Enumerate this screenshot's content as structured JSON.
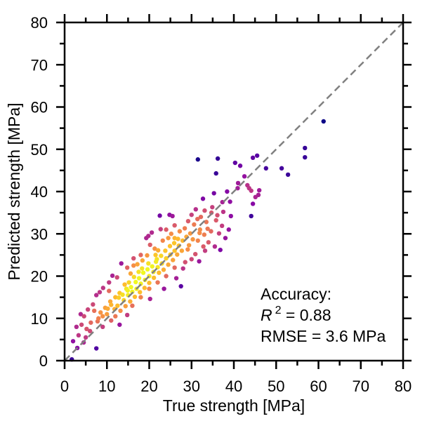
{
  "chart_data": {
    "type": "scatter",
    "xlabel": "True strength [MPa]",
    "ylabel": "Predicted strength [MPa]",
    "xlim": [
      0,
      80
    ],
    "ylim": [
      0,
      80
    ],
    "xticks": [
      "0",
      "10",
      "20",
      "30",
      "40",
      "50",
      "60",
      "70",
      "80"
    ],
    "yticks": [
      "0",
      "10",
      "20",
      "30",
      "40",
      "50",
      "60",
      "70",
      "80"
    ],
    "grid": false,
    "colormap": "plasma (point density)",
    "reference_line": {
      "label": "y = x",
      "color": "#808080",
      "style": "dashed"
    },
    "annotation": {
      "title": "Accuracy:",
      "r2_symbol": "R",
      "r2_sup": "2",
      "r2_value": " = 0.88",
      "rmse": "RMSE = 3.6 MPa"
    },
    "points": [
      [
        61.2,
        56.6
      ],
      [
        56.8,
        50.3
      ],
      [
        56.8,
        48.1
      ],
      [
        51.3,
        45.5
      ],
      [
        52.8,
        44.0
      ],
      [
        47.6,
        45.5
      ],
      [
        45.5,
        48.5
      ],
      [
        44.5,
        48.0
      ],
      [
        36.2,
        47.8
      ],
      [
        31.5,
        47.6
      ],
      [
        40.3,
        46.8
      ],
      [
        41.5,
        46.1
      ],
      [
        44.1,
        40.2
      ],
      [
        46.0,
        40.3
      ],
      [
        45.8,
        39.2
      ],
      [
        44.1,
        34.2
      ],
      [
        39.3,
        34.2
      ],
      [
        43.2,
        41.5
      ],
      [
        42.5,
        43.6
      ],
      [
        41.0,
        42.0
      ],
      [
        35.8,
        44.3
      ],
      [
        40.9,
        40.8
      ],
      [
        43.6,
        40.8
      ],
      [
        44.5,
        37.1
      ],
      [
        45.1,
        38.7
      ],
      [
        39.1,
        37.6
      ],
      [
        38.4,
        40.0
      ],
      [
        37.3,
        37.5
      ],
      [
        35.3,
        39.6
      ],
      [
        32.7,
        38.3
      ],
      [
        34.9,
        36.3
      ],
      [
        33.1,
        35.5
      ],
      [
        31.0,
        35.8
      ],
      [
        30.0,
        34.5
      ],
      [
        31.4,
        33.5
      ],
      [
        33.5,
        32.8
      ],
      [
        35.8,
        33.2
      ],
      [
        37.2,
        31.9
      ],
      [
        36.5,
        30.1
      ],
      [
        34.6,
        30.6
      ],
      [
        33.0,
        29.8
      ],
      [
        32.0,
        31.0
      ],
      [
        30.6,
        32.2
      ],
      [
        29.7,
        30.1
      ],
      [
        28.4,
        31.3
      ],
      [
        27.2,
        30.6
      ],
      [
        26.0,
        32.0
      ],
      [
        25.5,
        34.2
      ],
      [
        24.8,
        34.5
      ],
      [
        27.9,
        28.4
      ],
      [
        29.4,
        27.3
      ],
      [
        31.5,
        28.4
      ],
      [
        32.8,
        27.0
      ],
      [
        30.9,
        25.2
      ],
      [
        30.0,
        24.0
      ],
      [
        28.5,
        23.3
      ],
      [
        29.1,
        26.3
      ],
      [
        27.0,
        27.2
      ],
      [
        26.0,
        29.0
      ],
      [
        24.5,
        29.0
      ],
      [
        23.2,
        28.4
      ],
      [
        22.1,
        26.1
      ],
      [
        20.6,
        30.3
      ],
      [
        19.3,
        29.0
      ],
      [
        22.7,
        31.1
      ],
      [
        21.5,
        25.0
      ],
      [
        20.2,
        27.4
      ],
      [
        19.5,
        24.9
      ],
      [
        18.4,
        23.7
      ],
      [
        17.2,
        22.8
      ],
      [
        16.3,
        24.2
      ],
      [
        15.6,
        20.6
      ],
      [
        14.8,
        22.0
      ],
      [
        13.4,
        23.0
      ],
      [
        14.2,
        18.0
      ],
      [
        12.4,
        19.7
      ],
      [
        11.3,
        20.1
      ],
      [
        10.5,
        18.5
      ],
      [
        9.1,
        17.2
      ],
      [
        8.3,
        16.2
      ],
      [
        7.5,
        15.5
      ],
      [
        6.7,
        13.3
      ],
      [
        5.5,
        12.1
      ],
      [
        4.6,
        10.5
      ],
      [
        3.8,
        11.0
      ],
      [
        2.8,
        8.0
      ],
      [
        3.3,
        6.0
      ],
      [
        4.5,
        4.3
      ],
      [
        5.0,
        5.5
      ],
      [
        2.0,
        4.6
      ],
      [
        1.7,
        0.3
      ],
      [
        7.5,
        2.9
      ],
      [
        6.0,
        7.0
      ],
      [
        7.8,
        9.3
      ],
      [
        8.5,
        11.4
      ],
      [
        9.6,
        12.5
      ],
      [
        10.8,
        14.0
      ],
      [
        11.8,
        12.2
      ],
      [
        12.8,
        14.9
      ],
      [
        13.7,
        15.6
      ],
      [
        14.9,
        16.6
      ],
      [
        15.7,
        17.4
      ],
      [
        16.8,
        18.6
      ],
      [
        17.6,
        19.5
      ],
      [
        18.6,
        20.8
      ],
      [
        19.6,
        21.6
      ],
      [
        20.7,
        22.3
      ],
      [
        21.6,
        23.4
      ],
      [
        22.8,
        24.8
      ],
      [
        23.8,
        26.0
      ],
      [
        24.9,
        27.1
      ],
      [
        25.9,
        27.8
      ],
      [
        26.8,
        28.8
      ],
      [
        11.0,
        9.5
      ],
      [
        12.0,
        10.5
      ],
      [
        13.2,
        11.8
      ],
      [
        14.4,
        12.9
      ],
      [
        15.5,
        14.0
      ],
      [
        16.6,
        15.1
      ],
      [
        17.8,
        16.2
      ],
      [
        18.9,
        17.2
      ],
      [
        20.0,
        18.4
      ],
      [
        21.1,
        19.6
      ],
      [
        22.3,
        20.8
      ],
      [
        23.4,
        21.5
      ],
      [
        24.5,
        22.7
      ],
      [
        25.6,
        23.8
      ],
      [
        26.6,
        25.1
      ],
      [
        27.7,
        26.0
      ],
      [
        9.0,
        8.0
      ],
      [
        8.0,
        10.0
      ],
      [
        10.0,
        11.0
      ],
      [
        12.5,
        13.0
      ],
      [
        14.0,
        14.3
      ],
      [
        15.0,
        15.5
      ],
      [
        16.0,
        16.3
      ],
      [
        17.0,
        17.0
      ],
      [
        18.0,
        18.2
      ],
      [
        19.0,
        19.1
      ],
      [
        20.0,
        20.0
      ],
      [
        21.0,
        21.0
      ],
      [
        22.0,
        22.1
      ],
      [
        23.0,
        23.0
      ],
      [
        24.0,
        24.2
      ],
      [
        25.0,
        25.1
      ],
      [
        26.0,
        26.0
      ],
      [
        14.6,
        17.0
      ],
      [
        15.2,
        18.5
      ],
      [
        16.4,
        19.8
      ],
      [
        17.5,
        21.0
      ],
      [
        18.3,
        21.8
      ],
      [
        19.8,
        23.0
      ],
      [
        21.8,
        24.0
      ],
      [
        13.0,
        16.0
      ],
      [
        12.0,
        15.0
      ],
      [
        11.0,
        13.2
      ],
      [
        10.2,
        12.3
      ],
      [
        9.0,
        10.5
      ],
      [
        16.0,
        13.0
      ],
      [
        18.0,
        15.0
      ],
      [
        20.0,
        17.0
      ],
      [
        22.0,
        18.5
      ],
      [
        24.0,
        20.0
      ],
      [
        26.0,
        22.0
      ],
      [
        27.5,
        17.6
      ],
      [
        20.2,
        14.6
      ],
      [
        23.5,
        17.0
      ],
      [
        26.4,
        19.5
      ],
      [
        28.0,
        21.8
      ],
      [
        31.8,
        23.5
      ],
      [
        33.2,
        26.0
      ],
      [
        34.0,
        28.0
      ],
      [
        35.5,
        27.0
      ],
      [
        36.8,
        26.2
      ],
      [
        38.0,
        29.0
      ],
      [
        38.8,
        31.0
      ],
      [
        22.5,
        34.3
      ],
      [
        19.8,
        29.5
      ],
      [
        21.3,
        26.5
      ],
      [
        24.0,
        31.0
      ],
      [
        25.2,
        30.0
      ],
      [
        28.8,
        29.3
      ],
      [
        30.3,
        28.7
      ],
      [
        31.9,
        30.2
      ],
      [
        33.8,
        31.2
      ],
      [
        34.7,
        35.0
      ],
      [
        36.1,
        34.4
      ],
      [
        37.5,
        35.2
      ],
      [
        32.2,
        34.0
      ],
      [
        29.2,
        33.0
      ],
      [
        6.2,
        9.0
      ],
      [
        7.0,
        11.8
      ],
      [
        4.0,
        8.5
      ],
      [
        5.2,
        7.5
      ],
      [
        3.0,
        3.0
      ],
      [
        13.0,
        8.5
      ],
      [
        14.8,
        10.8
      ],
      [
        10.5,
        16.5
      ],
      [
        16.3,
        22.5
      ],
      [
        18.0,
        25.0
      ]
    ]
  }
}
